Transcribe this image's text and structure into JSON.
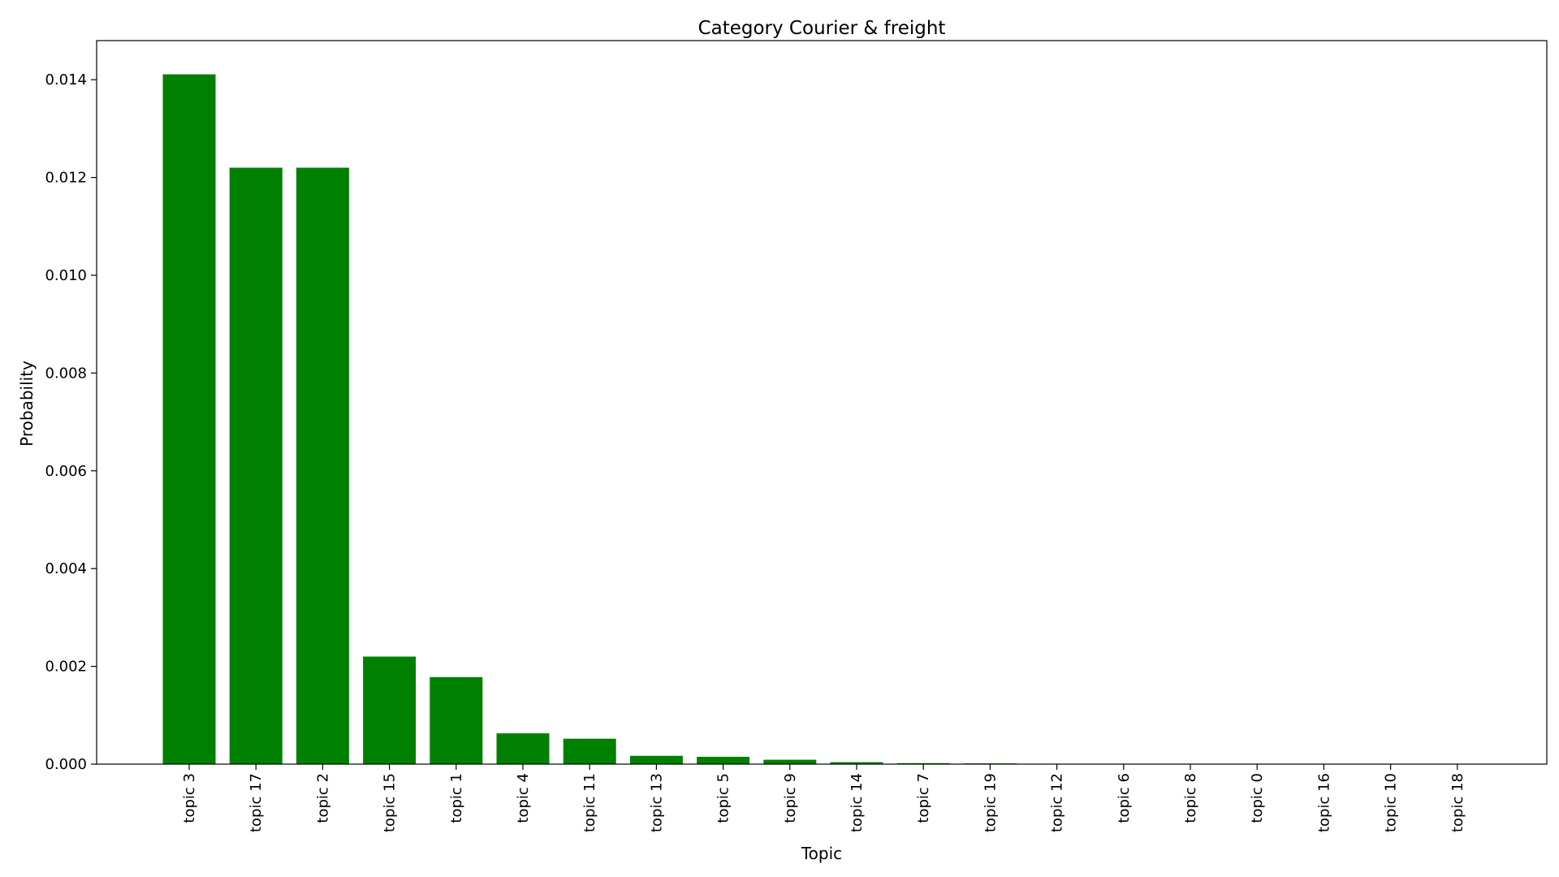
{
  "chart_data": {
    "type": "bar",
    "title": "Category Courier & freight",
    "xlabel": "Topic",
    "ylabel": "Probability",
    "categories": [
      "topic 3",
      "topic 17",
      "topic 2",
      "topic 15",
      "topic 1",
      "topic 4",
      "topic 11",
      "topic 13",
      "topic 5",
      "topic 9",
      "topic 14",
      "topic 7",
      "topic 19",
      "topic 12",
      "topic 6",
      "topic 8",
      "topic 0",
      "topic 16",
      "topic 10",
      "topic 18"
    ],
    "values": [
      0.01411,
      0.0122,
      0.0122,
      0.0022,
      0.00178,
      0.00063,
      0.00052,
      0.00017,
      0.00015,
      9e-05,
      4e-05,
      2e-05,
      1.5e-05,
      4e-06,
      3e-06,
      2e-06,
      1e-06,
      1e-06,
      1e-06,
      1e-06
    ],
    "ylim": [
      0,
      0.0148
    ],
    "yticks": [
      "0.000",
      "0.002",
      "0.004",
      "0.006",
      "0.008",
      "0.010",
      "0.012",
      "0.014"
    ],
    "ytick_values": [
      0,
      0.002,
      0.004,
      0.006,
      0.008,
      0.01,
      0.012,
      0.014
    ],
    "grid": false,
    "bar_color": "#008000"
  }
}
